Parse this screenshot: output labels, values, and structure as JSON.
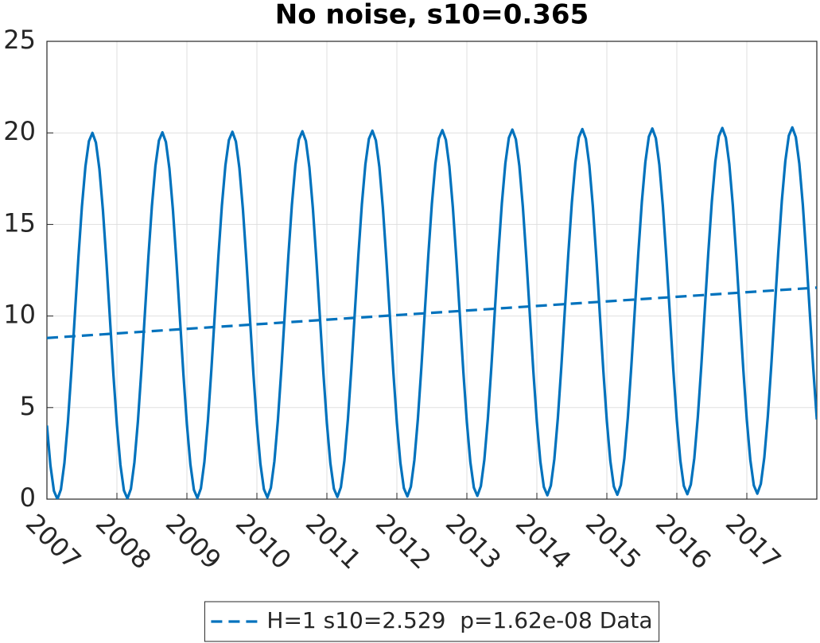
{
  "chart_data": {
    "type": "line",
    "title": "No noise, s10=0.365",
    "xlim": [
      2007,
      2018
    ],
    "xticks": [
      2007,
      2008,
      2009,
      2010,
      2011,
      2012,
      2013,
      2014,
      2015,
      2016,
      2017
    ],
    "ylim": [
      0,
      25
    ],
    "yticks": [
      0,
      5,
      10,
      15,
      20,
      25
    ],
    "grid": true,
    "legend": "bottom",
    "series": [
      {
        "color": "#0072bd",
        "dash": false,
        "x": [
          2007,
          2007.05,
          2007.1,
          2007.15,
          2007.2,
          2007.25,
          2007.3,
          2007.35,
          2007.4,
          2007.45,
          2007.5,
          2007.55,
          2007.6,
          2007.65,
          2007.7,
          2007.75,
          2007.8,
          2007.85,
          2007.9,
          2007.95,
          2008,
          2008.05,
          2008.1,
          2008.15,
          2008.2,
          2008.25,
          2008.3,
          2008.35,
          2008.4,
          2008.45,
          2008.5,
          2008.55,
          2008.6,
          2008.65,
          2008.7,
          2008.75,
          2008.8,
          2008.85,
          2008.9,
          2008.95,
          2009,
          2009.05,
          2009.1,
          2009.15,
          2009.2,
          2009.25,
          2009.3,
          2009.35,
          2009.4,
          2009.45,
          2009.5,
          2009.55,
          2009.6,
          2009.65,
          2009.7,
          2009.75,
          2009.8,
          2009.85,
          2009.9,
          2009.95,
          2010,
          2010.05,
          2010.1,
          2010.15,
          2010.2,
          2010.25,
          2010.3,
          2010.35,
          2010.4,
          2010.45,
          2010.5,
          2010.55,
          2010.6,
          2010.65,
          2010.7,
          2010.75,
          2010.8,
          2010.85,
          2010.9,
          2010.95,
          2011,
          2011.05,
          2011.1,
          2011.15,
          2011.2,
          2011.25,
          2011.3,
          2011.35,
          2011.4,
          2011.45,
          2011.5,
          2011.55,
          2011.6,
          2011.65,
          2011.7,
          2011.75,
          2011.8,
          2011.85,
          2011.9,
          2011.95,
          2012,
          2012.05,
          2012.1,
          2012.15,
          2012.2,
          2012.25,
          2012.3,
          2012.35,
          2012.4,
          2012.45,
          2012.5,
          2012.55,
          2012.6,
          2012.65,
          2012.7,
          2012.75,
          2012.8,
          2012.85,
          2012.9,
          2012.95,
          2013,
          2013.05,
          2013.1,
          2013.15,
          2013.2,
          2013.25,
          2013.3,
          2013.35,
          2013.4,
          2013.45,
          2013.5,
          2013.55,
          2013.6,
          2013.65,
          2013.7,
          2013.75,
          2013.8,
          2013.85,
          2013.9,
          2013.95,
          2014,
          2014.05,
          2014.1,
          2014.15,
          2014.2,
          2014.25,
          2014.3,
          2014.35,
          2014.4,
          2014.45,
          2014.5,
          2014.55,
          2014.6,
          2014.65,
          2014.7,
          2014.75,
          2014.8,
          2014.85,
          2014.9,
          2014.95,
          2015,
          2015.05,
          2015.1,
          2015.15,
          2015.2,
          2015.25,
          2015.3,
          2015.35,
          2015.4,
          2015.45,
          2015.5,
          2015.55,
          2015.6,
          2015.65,
          2015.7,
          2015.75,
          2015.8,
          2015.85,
          2015.9,
          2015.95,
          2016,
          2016.05,
          2016.1,
          2016.15,
          2016.2,
          2016.25,
          2016.3,
          2016.35,
          2016.4,
          2016.45,
          2016.5,
          2016.55,
          2016.6,
          2016.65,
          2016.7,
          2016.75,
          2016.8,
          2016.85,
          2016.9,
          2016.95,
          2017,
          2017.05,
          2017.1,
          2017.15,
          2017.2,
          2017.25,
          2017.3,
          2017.35,
          2017.4,
          2017.45,
          2017.5,
          2017.55,
          2017.6,
          2017.65,
          2017.7,
          2017.75,
          2017.8,
          2017.85,
          2017.9,
          2017.95,
          2018
        ],
        "values": [
          4.02,
          1.84,
          0.45,
          0.0,
          0.53,
          1.98,
          4.22,
          7.03,
          10.13,
          13.21,
          15.98,
          18.16,
          19.55,
          20.0,
          19.47,
          18.02,
          15.78,
          12.97,
          9.87,
          6.79,
          4.05,
          1.87,
          0.48,
          0.03,
          0.56,
          2.01,
          4.25,
          7.06,
          10.16,
          13.24,
          16.01,
          18.19,
          19.58,
          20.03,
          19.5,
          18.05,
          15.81,
          13.0,
          9.9,
          6.82,
          4.08,
          1.9,
          0.51,
          0.06,
          0.59,
          2.04,
          4.28,
          7.09,
          10.19,
          13.27,
          16.04,
          18.22,
          19.61,
          20.06,
          19.53,
          18.08,
          15.84,
          13.03,
          9.93,
          6.85,
          4.11,
          1.93,
          0.54,
          0.09,
          0.62,
          2.07,
          4.31,
          7.12,
          10.22,
          13.3,
          16.07,
          18.25,
          19.64,
          20.09,
          19.56,
          18.11,
          15.87,
          13.06,
          9.96,
          6.88,
          4.14,
          1.96,
          0.57,
          0.12,
          0.65,
          2.1,
          4.34,
          7.15,
          10.25,
          13.33,
          16.1,
          18.28,
          19.67,
          20.12,
          19.59,
          18.14,
          15.9,
          13.09,
          9.99,
          6.91,
          4.17,
          1.99,
          0.6,
          0.15,
          0.68,
          2.13,
          4.37,
          7.18,
          10.28,
          13.36,
          16.13,
          18.31,
          19.7,
          20.15,
          19.62,
          18.17,
          15.93,
          13.12,
          10.02,
          6.94,
          4.2,
          2.02,
          0.63,
          0.18,
          0.71,
          2.16,
          4.4,
          7.21,
          10.31,
          13.39,
          16.16,
          18.34,
          19.73,
          20.18,
          19.65,
          18.2,
          15.96,
          13.15,
          10.05,
          6.97,
          4.23,
          2.05,
          0.66,
          0.21,
          0.74,
          2.19,
          4.43,
          7.24,
          10.34,
          13.42,
          16.19,
          18.37,
          19.76,
          20.21,
          19.68,
          18.23,
          15.99,
          13.18,
          10.08,
          7.0,
          4.26,
          2.08,
          0.69,
          0.24,
          0.77,
          2.22,
          4.46,
          7.27,
          10.37,
          13.45,
          16.22,
          18.4,
          19.79,
          20.24,
          19.71,
          18.26,
          16.02,
          13.21,
          10.11,
          7.03,
          4.29,
          2.11,
          0.72,
          0.27,
          0.8,
          2.25,
          4.49,
          7.3,
          10.4,
          13.48,
          16.25,
          18.43,
          19.82,
          20.27,
          19.74,
          18.29,
          16.05,
          13.24,
          10.14,
          7.06,
          4.32,
          2.14,
          0.75,
          0.3,
          0.83,
          2.28,
          4.52,
          7.33,
          10.43,
          13.51,
          16.28,
          18.46,
          19.85,
          20.3,
          19.77,
          18.32,
          16.08,
          13.27,
          10.17,
          7.09,
          4.35
        ]
      },
      {
        "name": "H=1 s10=2.529  p=1.62e-08 Data",
        "color": "#0072bd",
        "dash": true,
        "x": [
          2007,
          2018
        ],
        "values": [
          8.8,
          11.55
        ]
      }
    ]
  }
}
